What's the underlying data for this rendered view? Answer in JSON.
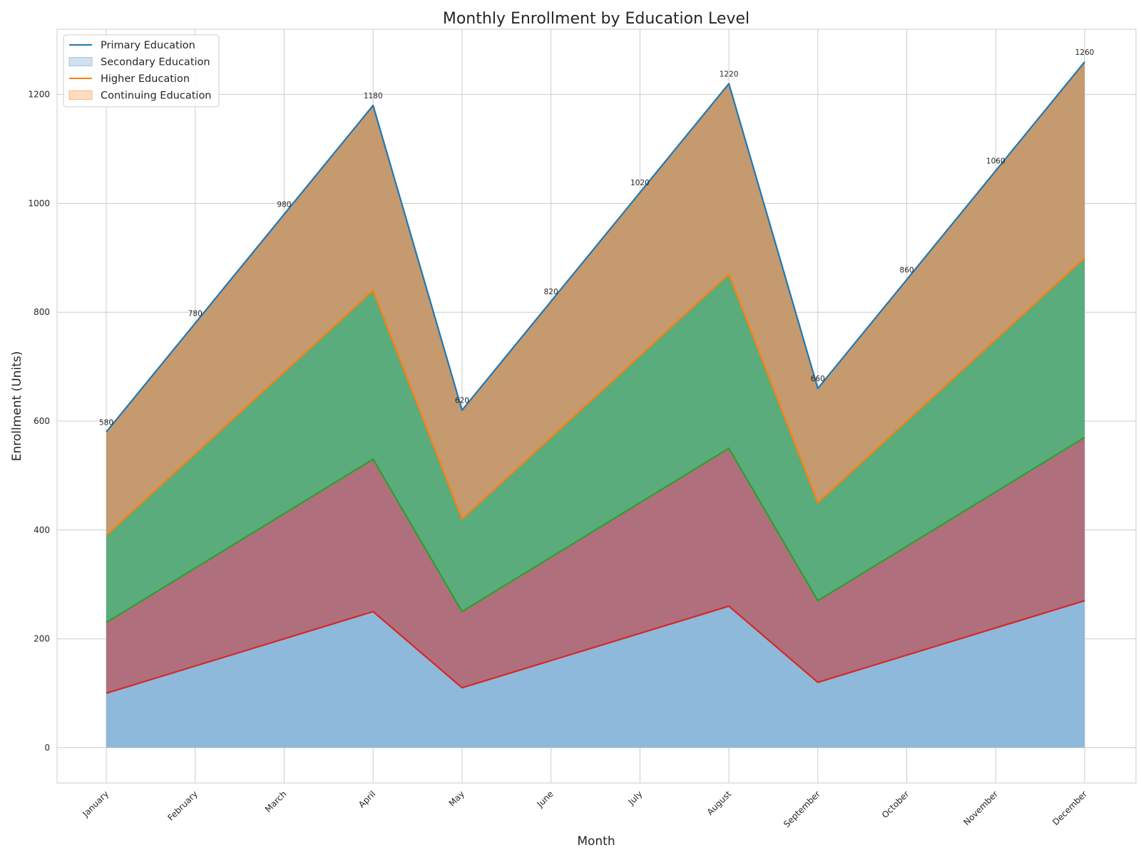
{
  "chart_data": {
    "type": "area",
    "stacked": true,
    "title": "Monthly Enrollment by Education Level",
    "xlabel": "Month",
    "ylabel": "Enrollment (Units)",
    "ylim": [
      -65,
      1320
    ],
    "yticks": [
      0,
      200,
      400,
      600,
      800,
      1000,
      1200
    ],
    "grid": true,
    "legend_position": "top-left",
    "categories": [
      "January",
      "February",
      "March",
      "April",
      "May",
      "June",
      "July",
      "August",
      "September",
      "October",
      "November",
      "December"
    ],
    "series": [
      {
        "name": "Primary Education",
        "values": [
          100,
          150,
          200,
          250,
          110,
          160,
          210,
          260,
          120,
          170,
          220,
          270
        ],
        "fill": "#8fb9da",
        "line": "#d62728"
      },
      {
        "name": "Secondary Education",
        "values": [
          130,
          180,
          230,
          280,
          140,
          190,
          240,
          290,
          150,
          200,
          250,
          300
        ],
        "fill": "#b06f7d",
        "line": "#2ca02c"
      },
      {
        "name": "Higher Education",
        "values": [
          160,
          210,
          260,
          310,
          170,
          220,
          270,
          320,
          180,
          230,
          280,
          330
        ],
        "fill": "#5aac7c",
        "line": "#ff7f0e"
      },
      {
        "name": "Continuing Education",
        "values": [
          190,
          240,
          290,
          340,
          200,
          250,
          300,
          350,
          210,
          260,
          310,
          360
        ],
        "fill": "#c49a6e",
        "line": "#1f77b4"
      }
    ],
    "totals": [
      580,
      780,
      980,
      1180,
      620,
      820,
      1020,
      1220,
      660,
      860,
      1060,
      1260
    ],
    "total_labels": [
      "580",
      "780",
      "980",
      "1180",
      "620",
      "820",
      "1020",
      "1220",
      "660",
      "860",
      "1060",
      "1260"
    ],
    "legend": [
      {
        "label": "Primary Education",
        "kind": "line",
        "color": "#1f77b4"
      },
      {
        "label": "Secondary Education",
        "kind": "patch",
        "color": "#cfe0ee",
        "edge": "#a9c6e0"
      },
      {
        "label": "Higher Education",
        "kind": "line",
        "color": "#ff7f0e"
      },
      {
        "label": "Continuing Education",
        "kind": "patch",
        "color": "#ffdcc0",
        "edge": "#f5b98a"
      }
    ]
  }
}
